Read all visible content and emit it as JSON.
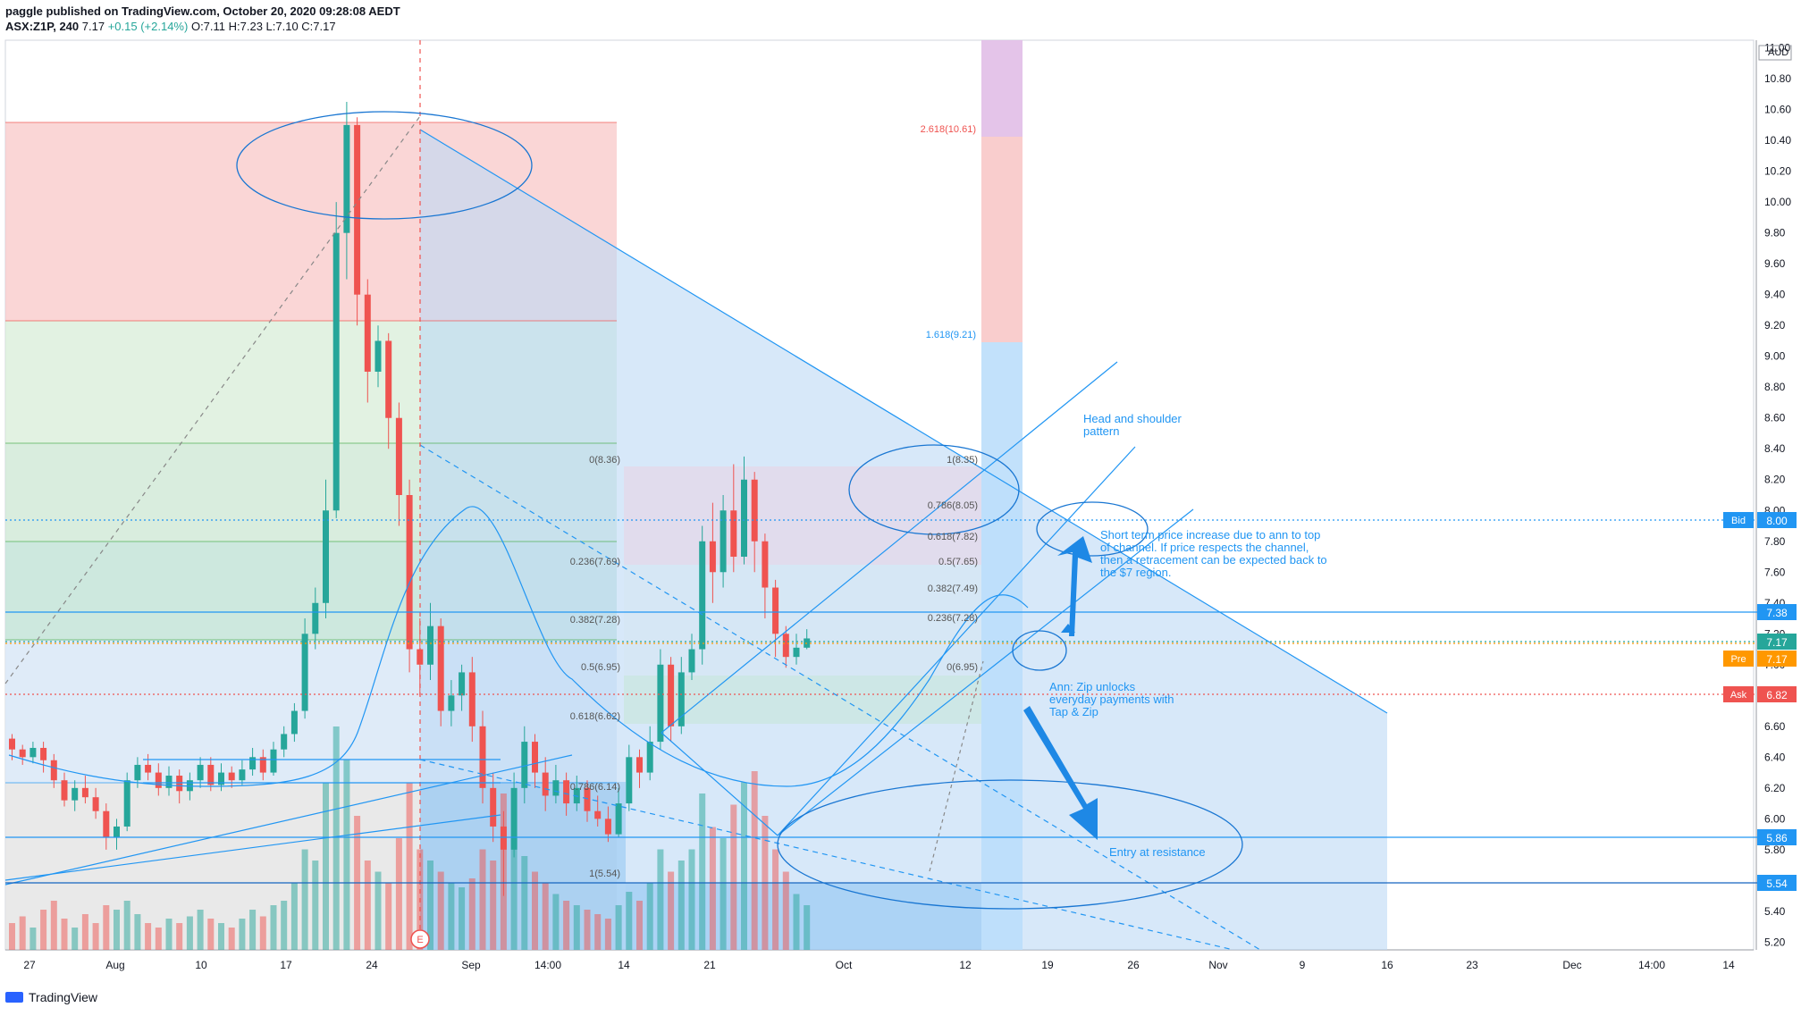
{
  "header": {
    "publisher_line": "paggle published on TradingView.com, October 20, 2020 09:28:08 AEDT",
    "symbol": "ASX:Z1P, 240",
    "last": "7.17",
    "change": "+0.15 (+2.14%)",
    "ohlc": "O:7.11 H:7.23 L:7.10 C:7.17"
  },
  "footer": {
    "brand": "TradingView"
  },
  "chart_data": {
    "type": "candlestick",
    "currency": "AUD",
    "y_axis_ticks": [
      "11.00",
      "10.80",
      "10.60",
      "10.40",
      "10.20",
      "10.00",
      "9.80",
      "9.60",
      "9.40",
      "9.20",
      "9.00",
      "8.80",
      "8.60",
      "8.40",
      "8.20",
      "8.00",
      "7.80",
      "7.60",
      "7.40",
      "7.20",
      "7.00",
      "6.80",
      "6.60",
      "6.40",
      "6.20",
      "6.00",
      "5.80",
      "5.60",
      "5.40",
      "5.20"
    ],
    "ylim": [
      5.15,
      11.05
    ],
    "x_axis_ticks": [
      "27",
      "Aug",
      "10",
      "17",
      "24",
      "Sep",
      "14:00",
      "14",
      "21",
      "Oct",
      "12",
      "19",
      "26",
      "Nov",
      "9",
      "16",
      "23",
      "Dec",
      "14:00",
      "14"
    ],
    "price_labels": [
      {
        "label": "Bid",
        "value": "8.00",
        "color": "#2196f3"
      },
      {
        "label": "",
        "value": "7.38",
        "color": "#2196f3"
      },
      {
        "label": "",
        "value": "7.17",
        "color": "#26a69a"
      },
      {
        "label": "Pre",
        "value": "7.17",
        "color": "#ff9800"
      },
      {
        "label": "Ask",
        "value": "6.82",
        "color": "#ef5350"
      },
      {
        "label": "",
        "value": "5.86",
        "color": "#2196f3"
      },
      {
        "label": "",
        "value": "5.54",
        "color": "#2196f3"
      }
    ],
    "fib_left": [
      {
        "text": "0(8.36)"
      },
      {
        "text": "0.236(7.69)"
      },
      {
        "text": "0.382(7.28)"
      },
      {
        "text": "0.5(6.95)"
      },
      {
        "text": "0.618(6.62)"
      },
      {
        "text": "0.786(6.14)"
      },
      {
        "text": "1(5.54)"
      }
    ],
    "fib_right": [
      {
        "text": "1(8.35)"
      },
      {
        "text": "0.786(8.05)"
      },
      {
        "text": "0.618(7.82)"
      },
      {
        "text": "0.5(7.65)"
      },
      {
        "text": "0.382(7.49)"
      },
      {
        "text": "0.236(7.28)"
      },
      {
        "text": "0(6.95)"
      }
    ],
    "fib_ext": [
      {
        "text": "2.618(10.61)"
      },
      {
        "text": "1.618(9.21)"
      }
    ],
    "annotations": [
      {
        "text": "Head and shoulder"
      },
      {
        "text": "pattern"
      },
      {
        "text": "Short term price increase due to ann to top"
      },
      {
        "text": "of channel. If price respects the channel,"
      },
      {
        "text": "then a retracement can be expected back to"
      },
      {
        "text": "the $7 region."
      },
      {
        "text": "Ann: Zip unlocks"
      },
      {
        "text": "everyday payments with"
      },
      {
        "text": "Tap & Zip"
      },
      {
        "text": "Entry at resistance"
      },
      {
        "text": "E"
      }
    ],
    "candles": [
      [
        6.52,
        6.45,
        6.55,
        6.38
      ],
      [
        6.45,
        6.4,
        6.48,
        6.35
      ],
      [
        6.4,
        6.46,
        6.5,
        6.36
      ],
      [
        6.46,
        6.38,
        6.5,
        6.3
      ],
      [
        6.38,
        6.25,
        6.42,
        6.2
      ],
      [
        6.25,
        6.12,
        6.3,
        6.08
      ],
      [
        6.12,
        6.2,
        6.25,
        6.05
      ],
      [
        6.2,
        6.14,
        6.28,
        6.1
      ],
      [
        6.14,
        6.05,
        6.2,
        6.0
      ],
      [
        6.05,
        5.88,
        6.1,
        5.8
      ],
      [
        5.88,
        5.95,
        6.0,
        5.8
      ],
      [
        5.95,
        6.25,
        6.3,
        5.92
      ],
      [
        6.25,
        6.35,
        6.4,
        6.2
      ],
      [
        6.35,
        6.3,
        6.42,
        6.25
      ],
      [
        6.3,
        6.2,
        6.36,
        6.15
      ],
      [
        6.2,
        6.28,
        6.34,
        6.15
      ],
      [
        6.28,
        6.18,
        6.32,
        6.1
      ],
      [
        6.18,
        6.25,
        6.3,
        6.12
      ],
      [
        6.25,
        6.35,
        6.4,
        6.2
      ],
      [
        6.35,
        6.22,
        6.4,
        6.18
      ],
      [
        6.22,
        6.3,
        6.36,
        6.18
      ],
      [
        6.3,
        6.25,
        6.34,
        6.2
      ],
      [
        6.25,
        6.32,
        6.38,
        6.22
      ],
      [
        6.32,
        6.4,
        6.46,
        6.28
      ],
      [
        6.4,
        6.3,
        6.45,
        6.25
      ],
      [
        6.3,
        6.45,
        6.5,
        6.28
      ],
      [
        6.45,
        6.55,
        6.6,
        6.4
      ],
      [
        6.55,
        6.7,
        6.75,
        6.5
      ],
      [
        6.7,
        7.2,
        7.3,
        6.65
      ],
      [
        7.2,
        7.4,
        7.5,
        7.1
      ],
      [
        7.4,
        8.0,
        8.2,
        7.3
      ],
      [
        8.0,
        9.8,
        10.0,
        7.95
      ],
      [
        9.8,
        10.5,
        10.65,
        9.5
      ],
      [
        10.5,
        9.4,
        10.55,
        9.2
      ],
      [
        9.4,
        8.9,
        9.5,
        8.7
      ],
      [
        8.9,
        9.1,
        9.2,
        8.8
      ],
      [
        9.1,
        8.6,
        9.15,
        8.4
      ],
      [
        8.6,
        8.1,
        8.7,
        7.9
      ],
      [
        8.1,
        7.1,
        8.2,
        6.95
      ],
      [
        7.1,
        7.0,
        7.3,
        6.8
      ],
      [
        7.0,
        7.25,
        7.4,
        6.9
      ],
      [
        7.25,
        6.7,
        7.3,
        6.6
      ],
      [
        6.7,
        6.8,
        6.9,
        6.6
      ],
      [
        6.8,
        6.95,
        7.0,
        6.7
      ],
      [
        6.95,
        6.6,
        7.05,
        6.5
      ],
      [
        6.6,
        6.2,
        6.7,
        6.1
      ],
      [
        6.2,
        5.95,
        6.3,
        5.85
      ],
      [
        5.95,
        5.8,
        6.05,
        5.5
      ],
      [
        5.8,
        6.2,
        6.3,
        5.75
      ],
      [
        6.2,
        6.5,
        6.6,
        6.1
      ],
      [
        6.5,
        6.3,
        6.55,
        6.2
      ],
      [
        6.3,
        6.15,
        6.4,
        6.05
      ],
      [
        6.15,
        6.25,
        6.35,
        6.1
      ],
      [
        6.25,
        6.1,
        6.3,
        6.02
      ],
      [
        6.1,
        6.2,
        6.28,
        6.05
      ],
      [
        6.2,
        6.05,
        6.25,
        5.98
      ],
      [
        6.05,
        6.0,
        6.15,
        5.95
      ],
      [
        6.0,
        5.9,
        6.08,
        5.85
      ],
      [
        5.9,
        6.1,
        6.2,
        5.88
      ],
      [
        6.1,
        6.4,
        6.48,
        6.05
      ],
      [
        6.4,
        6.3,
        6.45,
        6.2
      ],
      [
        6.3,
        6.5,
        6.6,
        6.25
      ],
      [
        6.5,
        7.0,
        7.1,
        6.45
      ],
      [
        7.0,
        6.6,
        7.05,
        6.5
      ],
      [
        6.6,
        6.95,
        7.05,
        6.55
      ],
      [
        6.95,
        7.1,
        7.2,
        6.9
      ],
      [
        7.1,
        7.8,
        7.9,
        7.0
      ],
      [
        7.8,
        7.6,
        8.05,
        7.4
      ],
      [
        7.6,
        8.0,
        8.1,
        7.5
      ],
      [
        8.0,
        7.7,
        8.3,
        7.6
      ],
      [
        7.7,
        8.2,
        8.35,
        7.65
      ],
      [
        8.2,
        7.8,
        8.25,
        7.6
      ],
      [
        7.8,
        7.5,
        7.85,
        7.3
      ],
      [
        7.5,
        7.2,
        7.55,
        7.05
      ],
      [
        7.2,
        7.05,
        7.25,
        6.98
      ],
      [
        7.05,
        7.11,
        7.2,
        7.0
      ],
      [
        7.11,
        7.17,
        7.23,
        7.1
      ]
    ],
    "volumes": [
      0.12,
      0.15,
      0.1,
      0.18,
      0.22,
      0.14,
      0.1,
      0.16,
      0.12,
      0.2,
      0.18,
      0.22,
      0.16,
      0.12,
      0.1,
      0.14,
      0.12,
      0.15,
      0.18,
      0.14,
      0.12,
      0.1,
      0.14,
      0.18,
      0.15,
      0.2,
      0.22,
      0.3,
      0.45,
      0.4,
      0.75,
      1.0,
      0.85,
      0.6,
      0.4,
      0.35,
      0.3,
      0.5,
      0.75,
      0.45,
      0.4,
      0.35,
      0.3,
      0.28,
      0.32,
      0.45,
      0.4,
      0.7,
      0.5,
      0.42,
      0.35,
      0.3,
      0.25,
      0.22,
      0.2,
      0.18,
      0.16,
      0.14,
      0.2,
      0.26,
      0.22,
      0.3,
      0.45,
      0.35,
      0.4,
      0.45,
      0.7,
      0.55,
      0.5,
      0.65,
      0.75,
      0.8,
      0.6,
      0.45,
      0.35,
      0.25,
      0.2
    ]
  }
}
